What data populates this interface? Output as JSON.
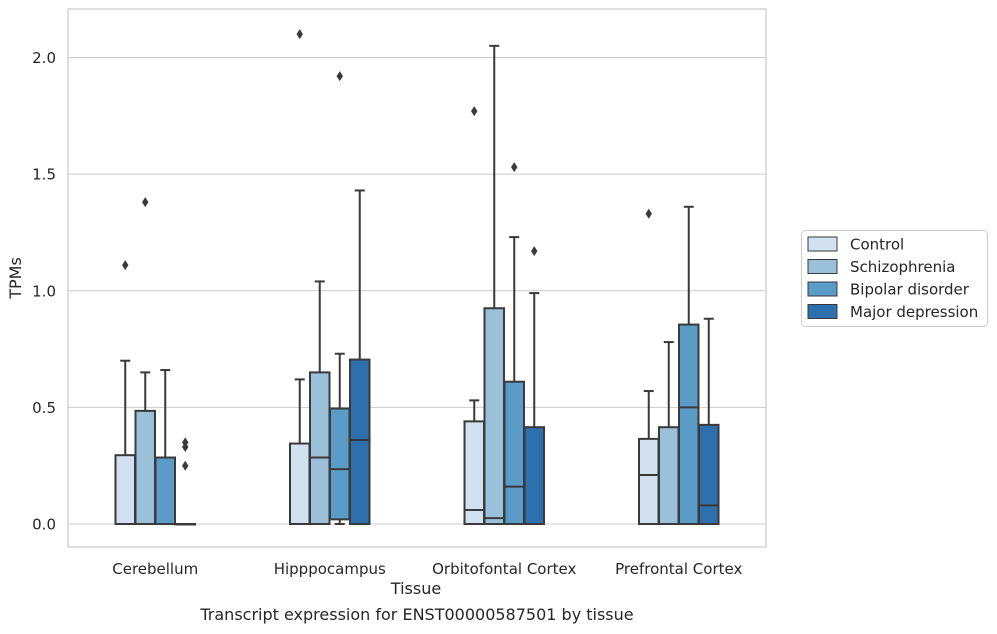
{
  "chart_data": {
    "type": "box",
    "xlabel": "Tissue",
    "ylabel": "TPMs",
    "ylim": [
      -0.1,
      2.22
    ],
    "yticks": [
      0.0,
      0.5,
      1.0,
      1.5,
      2.0
    ],
    "ytick_labels": [
      "0.0",
      "0.5",
      "1.0",
      "1.5",
      "2.0"
    ],
    "categories": [
      "Cerebellum",
      "Hipppocampus",
      "Orbitofontal Cortex",
      "Prefrontal Cortex"
    ],
    "grid": "horizontal",
    "legend_position": "right",
    "series": [
      {
        "name": "Control",
        "color": "#d2e1ef",
        "boxes": [
          {
            "whislo": 0.0,
            "q1": 0.0,
            "med": 0.0,
            "q3": 0.295,
            "whishi": 0.7,
            "fliers": [
              1.11
            ]
          },
          {
            "whislo": 0.0,
            "q1": 0.0,
            "med": 0.0,
            "q3": 0.345,
            "whishi": 0.62,
            "fliers": [
              2.1
            ]
          },
          {
            "whislo": 0.0,
            "q1": 0.0,
            "med": 0.06,
            "q3": 0.44,
            "whishi": 0.53,
            "fliers": [
              1.77
            ]
          },
          {
            "whislo": 0.0,
            "q1": 0.0,
            "med": 0.21,
            "q3": 0.365,
            "whishi": 0.57,
            "fliers": [
              1.33
            ]
          }
        ]
      },
      {
        "name": "Schizophrenia",
        "color": "#9bc0d9",
        "boxes": [
          {
            "whislo": 0.0,
            "q1": 0.0,
            "med": 0.0,
            "q3": 0.485,
            "whishi": 0.65,
            "fliers": [
              1.38
            ]
          },
          {
            "whislo": 0.0,
            "q1": 0.0,
            "med": 0.285,
            "q3": 0.65,
            "whishi": 1.04,
            "fliers": []
          },
          {
            "whislo": 0.0,
            "q1": 0.0,
            "med": 0.025,
            "q3": 0.925,
            "whishi": 2.05,
            "fliers": []
          },
          {
            "whislo": 0.0,
            "q1": 0.0,
            "med": 0.0,
            "q3": 0.415,
            "whishi": 0.78,
            "fliers": []
          }
        ]
      },
      {
        "name": "Bipolar disorder",
        "color": "#5b9bc8",
        "boxes": [
          {
            "whislo": 0.0,
            "q1": 0.0,
            "med": 0.0,
            "q3": 0.285,
            "whishi": 0.66,
            "fliers": []
          },
          {
            "whislo": 0.0,
            "q1": 0.02,
            "med": 0.235,
            "q3": 0.495,
            "whishi": 0.73,
            "fliers": [
              1.92
            ]
          },
          {
            "whislo": 0.0,
            "q1": 0.0,
            "med": 0.16,
            "q3": 0.61,
            "whishi": 1.23,
            "fliers": [
              1.53
            ]
          },
          {
            "whislo": 0.0,
            "q1": 0.0,
            "med": 0.5,
            "q3": 0.855,
            "whishi": 1.36,
            "fliers": []
          }
        ]
      },
      {
        "name": "Major depression",
        "color": "#2e6fad",
        "boxes": [
          {
            "whislo": 0.0,
            "q1": 0.0,
            "med": 0.0,
            "q3": 0.0,
            "whishi": 0.0,
            "fliers": [
              0.25,
              0.33,
              0.35
            ]
          },
          {
            "whislo": 0.0,
            "q1": 0.0,
            "med": 0.36,
            "q3": 0.705,
            "whishi": 1.43,
            "fliers": []
          },
          {
            "whislo": 0.0,
            "q1": 0.0,
            "med": 0.0,
            "q3": 0.415,
            "whishi": 0.99,
            "fliers": [
              1.17
            ]
          },
          {
            "whislo": 0.0,
            "q1": 0.0,
            "med": 0.08,
            "q3": 0.425,
            "whishi": 0.88,
            "fliers": []
          }
        ]
      }
    ]
  },
  "caption": "Transcript expression for ENST00000587501 by tissue"
}
